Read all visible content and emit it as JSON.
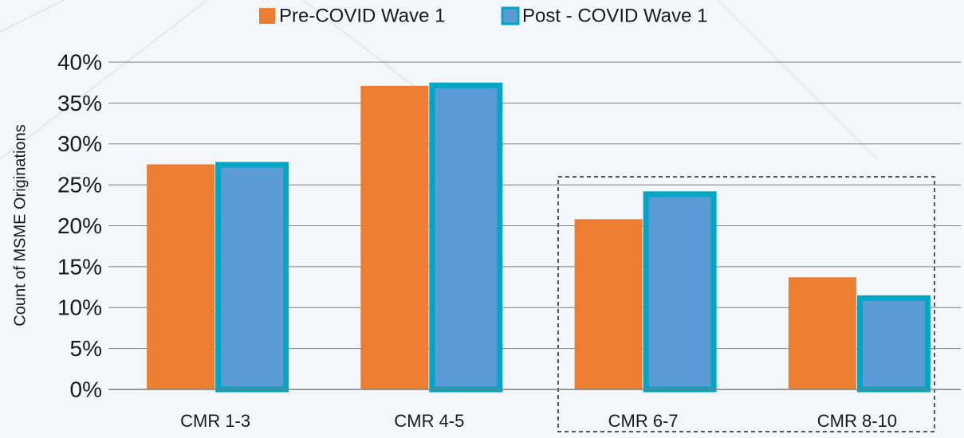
{
  "chart_data": {
    "type": "bar",
    "y_label": "Count of MSME Originations",
    "categories": [
      "CMR 1-3",
      "CMR 4-5",
      "CMR 6-7",
      "CMR 8-10"
    ],
    "series": [
      {
        "name": "Pre-COVID Wave 1",
        "color": "#ed7d31",
        "values": [
          27.5,
          37.1,
          20.8,
          13.7
        ]
      },
      {
        "name": "Post - COVID Wave 1",
        "color": "#5b9bd5",
        "edgecolor": "#00a6c6",
        "values": [
          27.8,
          37.5,
          24.2,
          11.5
        ]
      }
    ],
    "ylim": [
      0,
      40
    ],
    "yticks": [
      {
        "value": 0,
        "label": "0%"
      },
      {
        "value": 5,
        "label": "5%"
      },
      {
        "value": 10,
        "label": "10%"
      },
      {
        "value": 15,
        "label": "15%"
      },
      {
        "value": 20,
        "label": "20%"
      },
      {
        "value": 25,
        "label": "25%"
      },
      {
        "value": 30,
        "label": "30%"
      },
      {
        "value": 35,
        "label": "35%"
      },
      {
        "value": 40,
        "label": "40%"
      }
    ],
    "grid": true,
    "legend": "top"
  }
}
